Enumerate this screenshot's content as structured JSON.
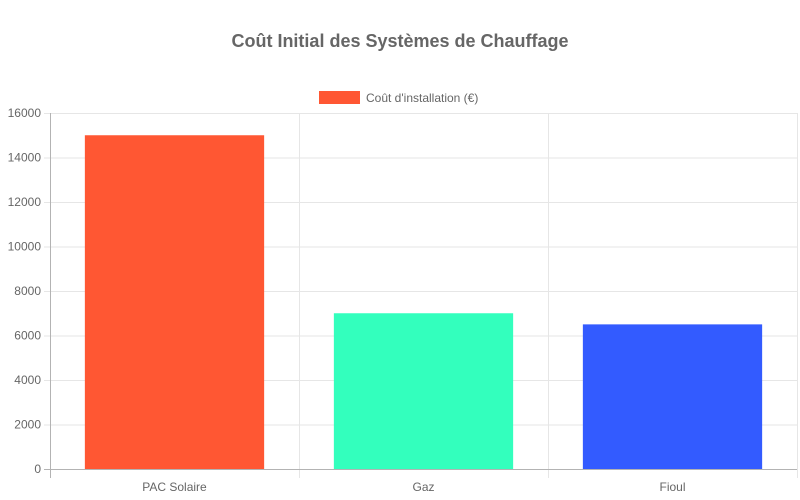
{
  "chart_data": {
    "type": "bar",
    "title": "Coût Initial des Systèmes de Chauffage",
    "categories": [
      "PAC Solaire",
      "Gaz",
      "Fioul"
    ],
    "series": [
      {
        "name": "Coût d'installation (€)",
        "values": [
          15000,
          7000,
          6500
        ],
        "colors": [
          "#FF5733",
          "#33FFBD",
          "#335BFF"
        ]
      }
    ],
    "xlabel": "",
    "ylabel": "",
    "ylim": [
      0,
      16000
    ],
    "yticks": [
      0,
      2000,
      4000,
      6000,
      8000,
      10000,
      12000,
      14000,
      16000
    ],
    "grid": true,
    "legend_position": "top"
  }
}
